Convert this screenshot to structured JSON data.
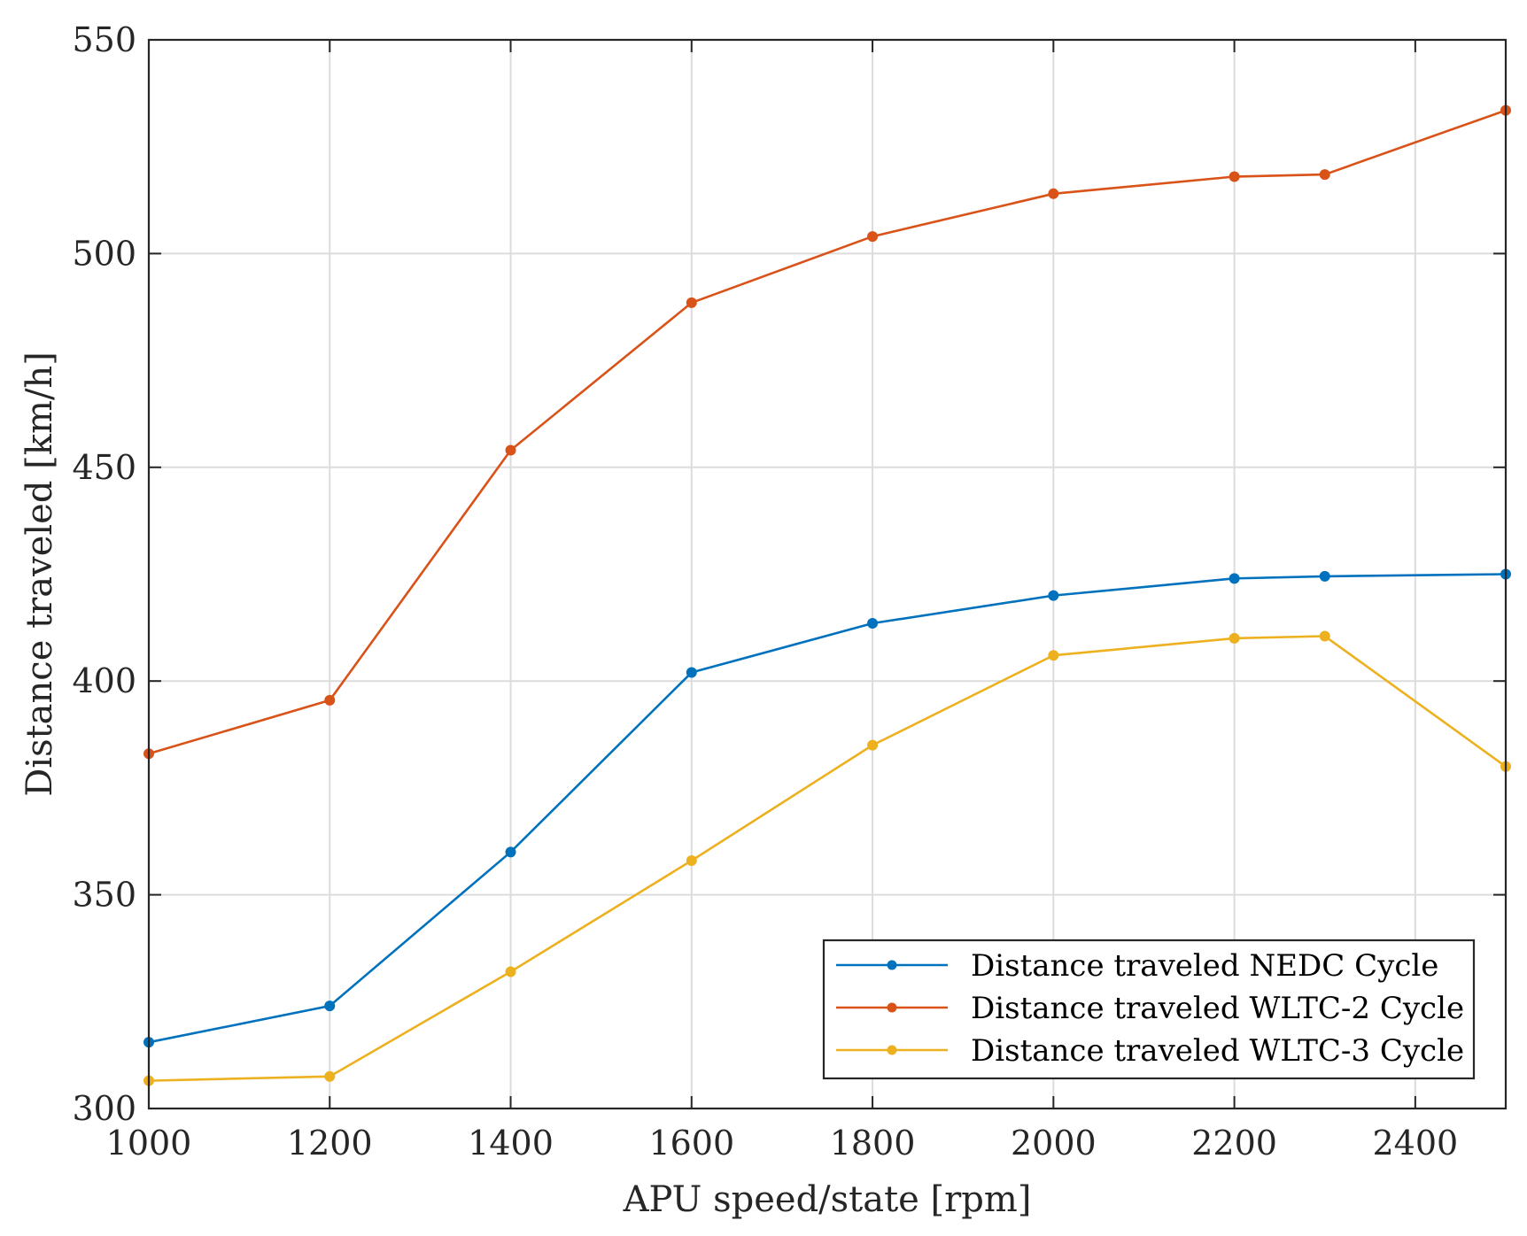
{
  "chart_data": {
    "type": "line",
    "title": "",
    "xlabel": "APU speed/state [rpm]",
    "ylabel": "Distance traveled [km/h]",
    "xlim": [
      1000,
      2500
    ],
    "ylim": [
      300,
      550
    ],
    "xticks": [
      1000,
      1200,
      1400,
      1600,
      1800,
      2000,
      2200,
      2400
    ],
    "yticks": [
      300,
      350,
      400,
      450,
      500,
      550
    ],
    "grid": true,
    "legend_position": "bottom-right",
    "x": [
      1000,
      1200,
      1400,
      1600,
      1800,
      2000,
      2200,
      2300,
      2500
    ],
    "series": [
      {
        "name": "Distance traveled NEDC Cycle",
        "color": "#0072BD",
        "values": [
          315.5,
          324,
          360,
          402,
          413.5,
          420,
          424,
          424.5,
          425
        ]
      },
      {
        "name": "Distance traveled WLTC-2 Cycle",
        "color": "#D95319",
        "values": [
          383,
          395.5,
          454,
          488.5,
          504,
          514,
          518,
          518.5,
          533.5
        ]
      },
      {
        "name": "Distance traveled WLTC-3 Cycle",
        "color": "#EDB120",
        "values": [
          306.5,
          307.5,
          332,
          358,
          385,
          406,
          410,
          410.5,
          380
        ]
      }
    ]
  }
}
